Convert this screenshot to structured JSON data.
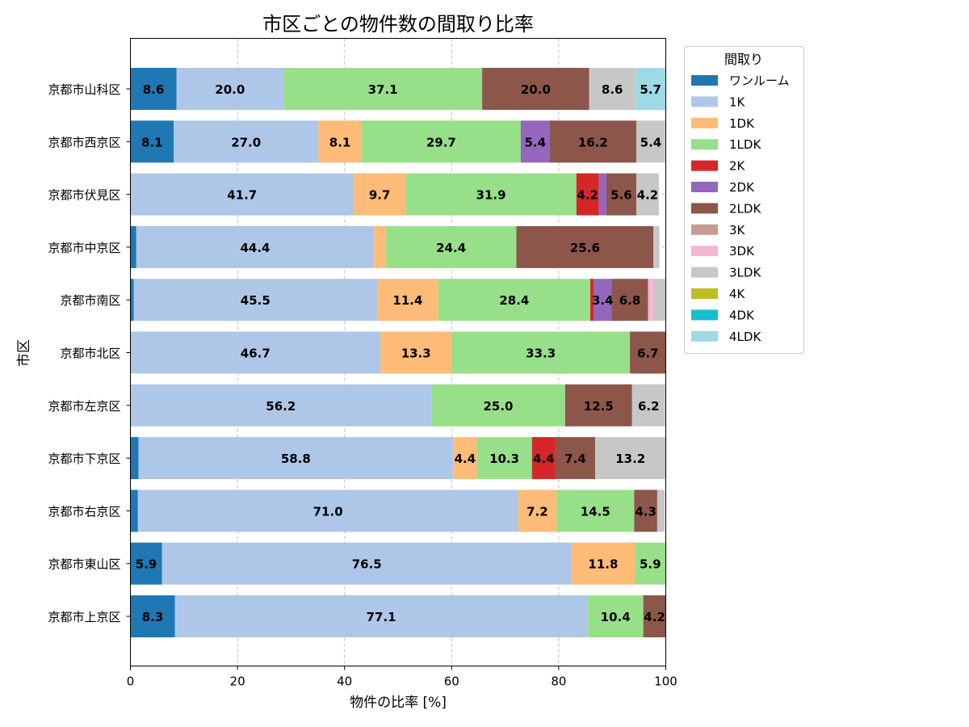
{
  "chart_data": {
    "type": "bar",
    "orientation": "horizontal",
    "stacked": true,
    "title": "市区ごとの物件数の間取り比率",
    "xlabel": "物件の比率 [%]",
    "ylabel": "市区",
    "xlim": [
      0,
      100
    ],
    "xticks": [
      0,
      20,
      40,
      60,
      80,
      100
    ],
    "grid": true,
    "legend_title": "間取り",
    "legend_position": "outside-top-right",
    "categories": [
      "京都市山科区",
      "京都市西京区",
      "京都市伏見区",
      "京都市中京区",
      "京都市南区",
      "京都市北区",
      "京都市左京区",
      "京都市下京区",
      "京都市右京区",
      "京都市東山区",
      "京都市上京区"
    ],
    "series": [
      {
        "name": "ワンルーム",
        "color": "#1f77b4",
        "values": [
          8.6,
          8.1,
          0,
          1.1,
          0.6,
          0,
          0,
          1.5,
          1.4,
          5.9,
          8.3
        ]
      },
      {
        "name": "1K",
        "color": "#aec7e8",
        "values": [
          20.0,
          27.0,
          41.7,
          44.4,
          45.5,
          46.7,
          56.2,
          58.8,
          71.0,
          76.5,
          77.1
        ]
      },
      {
        "name": "1DK",
        "color": "#ffbb78",
        "values": [
          0,
          8.1,
          9.7,
          2.2,
          11.4,
          13.3,
          0,
          4.4,
          7.2,
          11.8,
          0
        ]
      },
      {
        "name": "1LDK",
        "color": "#98df8a",
        "values": [
          37.1,
          29.7,
          31.9,
          24.4,
          28.4,
          33.3,
          25.0,
          10.3,
          14.5,
          5.9,
          10.4
        ]
      },
      {
        "name": "2K",
        "color": "#d62728",
        "values": [
          0,
          0,
          4.2,
          0,
          0.6,
          0,
          0,
          4.4,
          0,
          0,
          0
        ]
      },
      {
        "name": "2DK",
        "color": "#9467bd",
        "values": [
          0,
          5.4,
          1.4,
          0,
          3.4,
          0,
          0,
          0,
          0,
          0,
          0
        ]
      },
      {
        "name": "2LDK",
        "color": "#8c564b",
        "values": [
          20.0,
          16.2,
          5.6,
          25.6,
          6.8,
          6.7,
          12.5,
          7.4,
          4.3,
          0,
          4.2
        ]
      },
      {
        "name": "3K",
        "color": "#c49c94",
        "values": [
          0,
          0,
          0,
          0,
          0,
          0,
          0,
          0,
          0,
          0,
          0
        ]
      },
      {
        "name": "3DK",
        "color": "#f7b6d2",
        "values": [
          0,
          0,
          0,
          0,
          1.1,
          0,
          0,
          0,
          0,
          0,
          0
        ]
      },
      {
        "name": "3LDK",
        "color": "#c7c7c7",
        "values": [
          8.6,
          5.4,
          4.2,
          1.1,
          2.2,
          0,
          6.2,
          13.2,
          1.4,
          0,
          0
        ]
      },
      {
        "name": "4K",
        "color": "#bcbd22",
        "values": [
          0,
          0,
          0,
          0,
          0,
          0,
          0,
          0,
          0,
          0,
          0
        ]
      },
      {
        "name": "4DK",
        "color": "#17becf",
        "values": [
          0,
          0,
          0,
          0,
          0,
          0,
          0,
          0,
          0,
          0,
          0
        ]
      },
      {
        "name": "4LDK",
        "color": "#9edae5",
        "values": [
          5.7,
          0,
          0,
          0,
          0,
          0,
          0,
          0,
          0,
          0,
          0
        ]
      }
    ]
  }
}
